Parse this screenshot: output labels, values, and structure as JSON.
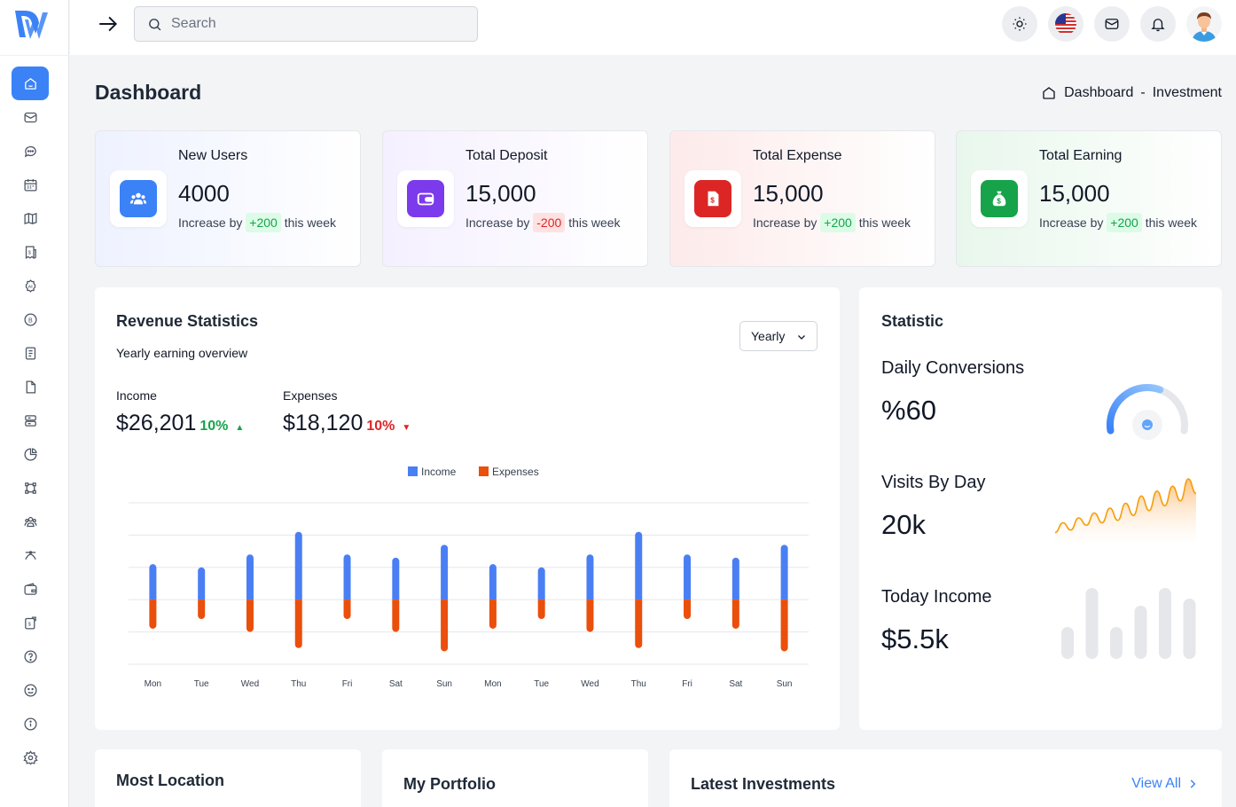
{
  "topbar": {
    "search_placeholder": "Search",
    "icons": [
      "theme-toggle-icon",
      "us-flag-icon",
      "mail-icon",
      "bell-icon",
      "user-avatar"
    ]
  },
  "sidebar": {
    "items": [
      "home",
      "mail",
      "chat",
      "calendar",
      "map",
      "invoice",
      "ai",
      "crypto",
      "notes",
      "file",
      "server",
      "pie-chart",
      "crop",
      "users",
      "bezier",
      "wallet",
      "exchange",
      "help",
      "smile",
      "info",
      "settings"
    ],
    "active": "home"
  },
  "page": {
    "title": "Dashboard",
    "breadcrumb": [
      "Dashboard",
      "-",
      "Investment"
    ]
  },
  "stats": [
    {
      "title": "New Users",
      "value": "4000",
      "prefix": "Increase by",
      "change": "+200",
      "suffix": "this week",
      "trend": "up",
      "color": "#3b82f6"
    },
    {
      "title": "Total Deposit",
      "value": "15,000",
      "prefix": "Increase by",
      "change": "-200",
      "suffix": "this week",
      "trend": "down",
      "color": "#7c3aed"
    },
    {
      "title": "Total Expense",
      "value": "15,000",
      "prefix": "Increase by",
      "change": "+200",
      "suffix": "this week",
      "trend": "up",
      "color": "#dc2626"
    },
    {
      "title": "Total Earning",
      "value": "15,000",
      "prefix": "Increase by",
      "change": "+200",
      "suffix": "this week",
      "trend": "up",
      "color": "#16a34a"
    }
  ],
  "revenue": {
    "title": "Revenue Statistics",
    "subtitle": "Yearly earning overview",
    "period": "Yearly",
    "income_label": "Income",
    "income_value": "$26,201",
    "income_pct": "10%",
    "expenses_label": "Expenses",
    "expenses_value": "$18,120",
    "expenses_pct": "10%"
  },
  "chart_data": {
    "type": "bar",
    "categories": [
      "Mon",
      "Tue",
      "Wed",
      "Thu",
      "Fri",
      "Sat",
      "Sun",
      "Mon",
      "Tue",
      "Wed",
      "Thu",
      "Fri",
      "Sat",
      "Sun"
    ],
    "series": [
      {
        "name": "Income",
        "color": "#4a7ff4",
        "values": [
          11,
          10,
          14,
          21,
          14,
          13,
          17,
          11,
          10,
          14,
          21,
          14,
          13,
          17
        ]
      },
      {
        "name": "Expenses",
        "color": "#ea4f0c",
        "values": [
          -9,
          -6,
          -10,
          -15,
          -6,
          -10,
          -16,
          -9,
          -6,
          -10,
          -15,
          -6,
          -9,
          -16
        ]
      }
    ],
    "ylim": [
      -20,
      30
    ],
    "legend": "top-center",
    "grid": true
  },
  "statistic": {
    "title": "Statistic",
    "daily_label": "Daily Conversions",
    "daily_value": "%60",
    "daily_gauge": 0.6,
    "visits_label": "Visits By Day",
    "visits_value": "20k",
    "visits_series": [
      2,
      6,
      3,
      8,
      5,
      10,
      6,
      12,
      7,
      14,
      9,
      17,
      11,
      19,
      13,
      21,
      15,
      24,
      18
    ],
    "income_label": "Today Income",
    "income_value": "$5.5k",
    "income_bars": [
      0.45,
      1.0,
      0.45,
      0.75,
      1.0,
      0.85
    ]
  },
  "bottom": {
    "most_location": "Most Location",
    "portfolio": "My Portfolio",
    "latest": "Latest Investments",
    "view_all": "View All"
  }
}
